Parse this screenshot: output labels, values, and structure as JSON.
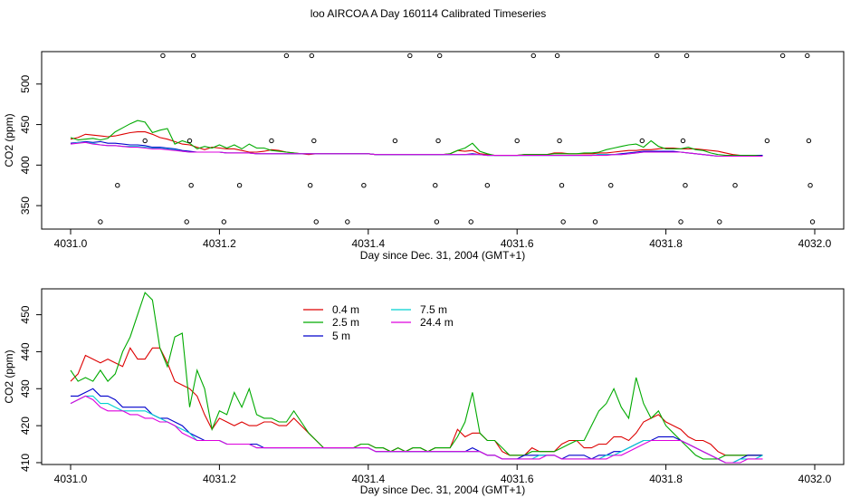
{
  "title": "loo AIRCOA A  Day 160114  Calibrated Timeseries",
  "colors": {
    "0.4 m": "#dd0000",
    "2.5 m": "#00aa00",
    "5 m": "#0000cc",
    "7.5 m": "#00d0d0",
    "24.4 m": "#dd00dd"
  },
  "chart_data": [
    {
      "type": "line",
      "xlabel": "Day since Dec. 31, 2004 (GMT+1)",
      "ylabel": "CO2 (ppm)",
      "xlim": [
        4031.0,
        4032.0
      ],
      "ylim": [
        330,
        540
      ],
      "xticks": [
        "4031.0",
        "4031.2",
        "4031.4",
        "4031.6",
        "4031.8",
        "4032.0"
      ],
      "yticks": [
        "350",
        "400",
        "450",
        "500"
      ],
      "x_start": 4031.0,
      "x_step": 0.01,
      "series": [
        {
          "name": "0.4 m",
          "values": [
            432,
            434,
            438,
            437,
            436,
            435,
            436,
            438,
            440,
            441,
            441,
            438,
            434,
            432,
            429,
            426,
            425,
            422,
            419,
            422,
            421,
            420,
            420,
            418,
            416,
            416,
            417,
            419,
            418,
            416,
            415,
            414,
            413,
            414,
            414,
            414,
            414,
            414,
            414,
            414,
            414,
            413,
            413,
            413,
            413,
            413,
            413,
            413,
            413,
            413,
            413,
            414,
            418,
            417,
            418,
            414,
            413,
            412,
            412,
            412,
            412,
            413,
            413,
            413,
            413,
            415,
            415,
            414,
            414,
            414,
            414,
            415,
            415,
            416,
            417,
            418,
            418,
            419,
            419,
            420,
            421,
            421,
            420,
            420,
            420,
            419,
            418,
            417,
            415,
            413,
            412,
            412,
            412,
            412
          ]
        },
        {
          "name": "2.5 m",
          "values": [
            434,
            431,
            432,
            433,
            431,
            433,
            441,
            446,
            451,
            455,
            453,
            440,
            443,
            445,
            426,
            430,
            427,
            420,
            423,
            421,
            425,
            421,
            425,
            420,
            426,
            421,
            421,
            418,
            417,
            416,
            415,
            414,
            414,
            414,
            414,
            414,
            414,
            414,
            414,
            414,
            414,
            413,
            413,
            413,
            413,
            413,
            413,
            413,
            413,
            413,
            413,
            414,
            418,
            421,
            427,
            417,
            414,
            412,
            412,
            412,
            412,
            413,
            413,
            413,
            413,
            414,
            414,
            414,
            414,
            415,
            415,
            416,
            419,
            421,
            423,
            425,
            426,
            422,
            430,
            423,
            420,
            420,
            420,
            422,
            419,
            418,
            415,
            413,
            412,
            412,
            412,
            412,
            412,
            412
          ]
        },
        {
          "name": "5 m",
          "values": [
            427,
            428,
            429,
            428,
            429,
            427,
            427,
            426,
            425,
            425,
            424,
            422,
            422,
            421,
            420,
            418,
            417,
            416,
            416,
            416,
            416,
            415,
            415,
            415,
            415,
            414,
            414,
            414,
            414,
            414,
            414,
            414,
            414,
            414,
            414,
            414,
            414,
            414,
            414,
            414,
            414,
            413,
            413,
            413,
            413,
            413,
            413,
            413,
            413,
            413,
            413,
            413,
            413,
            413,
            414,
            413,
            412,
            412,
            412,
            412,
            412,
            412,
            412,
            412,
            412,
            412,
            412,
            412,
            412,
            412,
            412,
            413,
            413,
            413,
            414,
            415,
            416,
            417,
            417,
            417,
            417,
            417,
            416,
            415,
            414,
            413,
            412,
            411,
            411,
            411,
            411,
            411,
            411,
            412
          ]
        },
        {
          "name": "7.5 m",
          "values": [
            426,
            428,
            428,
            427,
            425,
            424,
            424,
            423,
            423,
            423,
            422,
            421,
            421,
            420,
            419,
            417,
            416,
            416,
            416,
            416,
            416,
            415,
            415,
            415,
            415,
            414,
            414,
            414,
            414,
            414,
            414,
            414,
            414,
            414,
            414,
            414,
            414,
            414,
            414,
            414,
            414,
            413,
            413,
            413,
            413,
            413,
            413,
            413,
            413,
            413,
            413,
            413,
            413,
            413,
            413,
            413,
            412,
            412,
            412,
            412,
            412,
            412,
            412,
            412,
            412,
            412,
            412,
            412,
            412,
            412,
            412,
            413,
            413,
            413,
            413,
            414,
            415,
            416,
            416,
            416,
            416,
            416,
            416,
            415,
            414,
            413,
            412,
            411,
            411,
            411,
            411,
            411,
            411,
            411
          ]
        },
        {
          "name": "24.4 m",
          "values": [
            426,
            427,
            428,
            426,
            425,
            424,
            424,
            423,
            422,
            422,
            421,
            420,
            420,
            419,
            418,
            417,
            416,
            416,
            416,
            416,
            416,
            415,
            415,
            415,
            415,
            414,
            414,
            414,
            414,
            414,
            414,
            414,
            414,
            414,
            414,
            414,
            414,
            414,
            414,
            414,
            414,
            413,
            413,
            413,
            413,
            413,
            413,
            413,
            413,
            413,
            413,
            413,
            413,
            413,
            413,
            413,
            412,
            412,
            412,
            412,
            412,
            412,
            412,
            412,
            412,
            412,
            412,
            412,
            412,
            412,
            412,
            412,
            412,
            413,
            413,
            414,
            415,
            416,
            416,
            416,
            416,
            416,
            416,
            415,
            414,
            413,
            412,
            411,
            411,
            411,
            411,
            411,
            411,
            411
          ]
        }
      ],
      "markers": {
        "x": [
          4031.04,
          4031.063,
          4031.1,
          4031.124,
          4031.156,
          4031.16,
          4031.162,
          4031.165,
          4031.206,
          4031.227,
          4031.27,
          4031.29,
          4031.322,
          4031.324,
          4031.327,
          4031.33,
          4031.372,
          4031.394,
          4031.436,
          4031.456,
          4031.49,
          4031.492,
          4031.494,
          4031.496,
          4031.538,
          4031.56,
          4031.6,
          4031.622,
          4031.654,
          4031.657,
          4031.66,
          4031.662,
          4031.705,
          4031.726,
          4031.768,
          4031.788,
          4031.82,
          4031.823,
          4031.826,
          4031.828,
          4031.872,
          4031.893,
          4031.936,
          4031.957,
          4031.99,
          4031.992,
          4031.994,
          4031.997
        ],
        "y": [
          330,
          375,
          430,
          535,
          330,
          430,
          375,
          535,
          330,
          375,
          430,
          535,
          375,
          535,
          430,
          330,
          330,
          375,
          430,
          535,
          375,
          330,
          430,
          535,
          330,
          375,
          430,
          535,
          535,
          430,
          375,
          330,
          330,
          375,
          430,
          535,
          330,
          430,
          375,
          535,
          330,
          375,
          430,
          535,
          535,
          430,
          375,
          330
        ]
      }
    },
    {
      "type": "line",
      "xlabel": "Day since Dec. 31, 2004 (GMT+1)",
      "ylabel": "CO2 (ppm)",
      "xlim": [
        4031.0,
        4032.0
      ],
      "ylim": [
        409.5,
        457
      ],
      "xticks": [
        "4031.0",
        "4031.2",
        "4031.4",
        "4031.6",
        "4031.8",
        "4032.0"
      ],
      "yticks": [
        "410",
        "420",
        "430",
        "440",
        "450"
      ],
      "legend": {
        "position": "top-center",
        "entries": [
          "0.4 m",
          "2.5 m",
          "5 m",
          "7.5 m",
          "24.4 m"
        ]
      },
      "x_start": 4031.0,
      "x_step": 0.01,
      "series": [
        {
          "name": "0.4 m",
          "values": [
            432,
            434,
            439,
            438,
            437,
            438,
            437,
            436,
            441,
            438,
            438,
            441,
            441,
            437,
            432,
            431,
            430,
            428,
            423,
            419,
            422,
            421,
            420,
            421,
            420,
            420,
            421,
            421,
            420,
            420,
            422,
            420,
            418,
            416,
            414,
            414,
            414,
            414,
            414,
            415,
            415,
            414,
            414,
            413,
            414,
            413,
            414,
            414,
            413,
            414,
            414,
            414,
            419,
            417,
            418,
            418,
            416,
            416,
            413,
            412,
            412,
            412,
            414,
            413,
            413,
            413,
            415,
            416,
            416,
            414,
            414,
            415,
            415,
            417,
            417,
            416,
            418,
            421,
            422,
            423,
            421,
            420,
            419,
            417,
            416,
            416,
            415,
            413,
            412,
            412,
            412,
            412,
            412,
            412
          ]
        },
        {
          "name": "2.5 m",
          "values": [
            435,
            432,
            433,
            432,
            435,
            432,
            434,
            440,
            444,
            450,
            456,
            454,
            441,
            436,
            444,
            445,
            425,
            435,
            430,
            419,
            424,
            423,
            429,
            425,
            430,
            423,
            422,
            422,
            421,
            421,
            424,
            421,
            418,
            416,
            414,
            414,
            414,
            414,
            414,
            415,
            415,
            414,
            414,
            413,
            414,
            413,
            414,
            414,
            413,
            414,
            414,
            414,
            417,
            421,
            429,
            418,
            416,
            416,
            414,
            412,
            412,
            412,
            413,
            413,
            413,
            413,
            414,
            415,
            416,
            416,
            420,
            424,
            426,
            430,
            425,
            422,
            433,
            426,
            422,
            424,
            420,
            418,
            416,
            414,
            412,
            411,
            411,
            411,
            412,
            412,
            412,
            412,
            412,
            412
          ]
        },
        {
          "name": "5 m",
          "values": [
            428,
            428,
            429,
            430,
            428,
            428,
            427,
            425,
            425,
            425,
            425,
            423,
            422,
            422,
            421,
            420,
            418,
            417,
            416,
            416,
            416,
            415,
            415,
            415,
            415,
            415,
            414,
            414,
            414,
            414,
            414,
            414,
            414,
            414,
            414,
            414,
            414,
            414,
            414,
            414,
            414,
            413,
            413,
            413,
            413,
            413,
            413,
            413,
            413,
            413,
            413,
            413,
            413,
            413,
            414,
            413,
            412,
            412,
            411,
            411,
            411,
            412,
            412,
            412,
            412,
            412,
            411,
            412,
            412,
            412,
            411,
            412,
            412,
            413,
            413,
            414,
            415,
            416,
            416,
            417,
            417,
            417,
            416,
            415,
            414,
            413,
            412,
            411,
            410,
            410,
            411,
            412,
            412,
            412
          ]
        },
        {
          "name": "7.5 m",
          "values": [
            426,
            427,
            428,
            428,
            426,
            426,
            425,
            424,
            424,
            424,
            424,
            423,
            422,
            421,
            420,
            419,
            418,
            416,
            416,
            416,
            416,
            415,
            415,
            415,
            415,
            414,
            414,
            414,
            414,
            414,
            414,
            414,
            414,
            414,
            414,
            414,
            414,
            414,
            414,
            414,
            414,
            413,
            413,
            413,
            413,
            413,
            413,
            413,
            413,
            413,
            413,
            413,
            413,
            413,
            413,
            413,
            412,
            412,
            411,
            411,
            411,
            411,
            411,
            412,
            412,
            412,
            411,
            411,
            411,
            411,
            411,
            411,
            412,
            412,
            413,
            414,
            415,
            416,
            416,
            416,
            416,
            416,
            416,
            415,
            414,
            413,
            412,
            411,
            410,
            410,
            411,
            411,
            411,
            412
          ]
        },
        {
          "name": "24.4 m",
          "values": [
            426,
            427,
            428,
            427,
            425,
            424,
            424,
            424,
            423,
            423,
            422,
            422,
            421,
            421,
            420,
            418,
            417,
            416,
            416,
            416,
            416,
            415,
            415,
            415,
            415,
            414,
            414,
            414,
            414,
            414,
            414,
            414,
            414,
            414,
            414,
            414,
            414,
            414,
            414,
            414,
            414,
            413,
            413,
            413,
            413,
            413,
            413,
            413,
            413,
            413,
            413,
            413,
            413,
            413,
            413,
            413,
            412,
            412,
            411,
            411,
            411,
            411,
            411,
            411,
            412,
            412,
            411,
            411,
            411,
            411,
            411,
            411,
            411,
            412,
            412,
            413,
            414,
            415,
            416,
            416,
            416,
            416,
            416,
            415,
            414,
            413,
            412,
            411,
            410,
            410,
            410,
            411,
            411,
            411
          ]
        }
      ]
    }
  ]
}
